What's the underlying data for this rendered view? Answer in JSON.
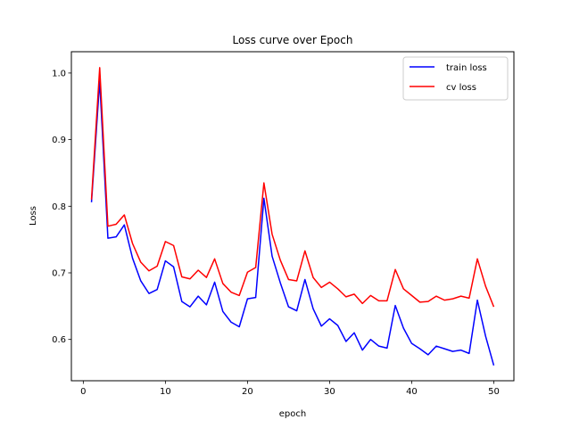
{
  "chart_data": {
    "type": "line",
    "title": "Loss curve over Epoch",
    "xlabel": "epoch",
    "ylabel": "Loss",
    "xlim": [
      -1.45,
      52.45
    ],
    "ylim": [
      0.538,
      1.032
    ],
    "xticks": [
      0,
      10,
      20,
      30,
      40,
      50
    ],
    "yticks": [
      0.6,
      0.7,
      0.8,
      0.9,
      1.0
    ],
    "ytick_labels": [
      "0.6",
      "0.7",
      "0.8",
      "0.9",
      "1.0"
    ],
    "legend_position": "top-right",
    "grid": false,
    "x": [
      1,
      2,
      3,
      4,
      5,
      6,
      7,
      8,
      9,
      10,
      11,
      12,
      13,
      14,
      15,
      16,
      17,
      18,
      19,
      20,
      21,
      22,
      23,
      24,
      25,
      26,
      27,
      28,
      29,
      30,
      31,
      32,
      33,
      34,
      35,
      36,
      37,
      38,
      39,
      40,
      41,
      42,
      43,
      44,
      45,
      46,
      47,
      48,
      49,
      50
    ],
    "series": [
      {
        "name": "train loss",
        "color": "#0000ff",
        "values": [
          0.806,
          0.988,
          0.752,
          0.754,
          0.772,
          0.722,
          0.688,
          0.669,
          0.675,
          0.718,
          0.709,
          0.657,
          0.649,
          0.665,
          0.652,
          0.686,
          0.642,
          0.626,
          0.619,
          0.661,
          0.663,
          0.812,
          0.725,
          0.685,
          0.649,
          0.643,
          0.69,
          0.646,
          0.62,
          0.631,
          0.621,
          0.597,
          0.61,
          0.584,
          0.6,
          0.59,
          0.587,
          0.651,
          0.617,
          0.594,
          0.586,
          0.577,
          0.59,
          0.586,
          0.582,
          0.584,
          0.579,
          0.659,
          0.605,
          0.561
        ]
      },
      {
        "name": "cv loss",
        "color": "#ff0000",
        "values": [
          0.81,
          1.008,
          0.77,
          0.773,
          0.787,
          0.744,
          0.716,
          0.703,
          0.71,
          0.747,
          0.741,
          0.694,
          0.691,
          0.704,
          0.693,
          0.721,
          0.684,
          0.671,
          0.666,
          0.701,
          0.708,
          0.835,
          0.758,
          0.719,
          0.69,
          0.688,
          0.733,
          0.693,
          0.678,
          0.686,
          0.676,
          0.664,
          0.668,
          0.654,
          0.666,
          0.658,
          0.658,
          0.705,
          0.676,
          0.666,
          0.656,
          0.657,
          0.665,
          0.659,
          0.661,
          0.665,
          0.662,
          0.721,
          0.68,
          0.649
        ]
      }
    ]
  }
}
